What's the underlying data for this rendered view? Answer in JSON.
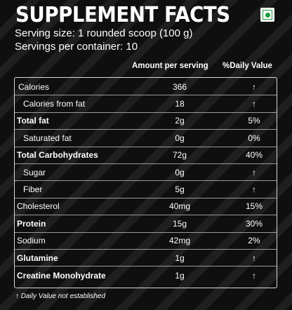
{
  "title": "SUPPLEMENT FACTS",
  "serving_size": "Serving size: 1 rounded scoop (100 g)",
  "servings_per_container": "Servings per container: 10",
  "veg_mark_icon": "veg-symbol-icon",
  "accent_green": "#1a9a3a",
  "headers": {
    "amount": "Amount per serving",
    "daily_value": "%Daily Value"
  },
  "rows": [
    {
      "label": "Calories",
      "amount": "366",
      "dv": "↑"
    },
    {
      "label": "Calories from fat",
      "amount": "18",
      "dv": "↑"
    },
    {
      "label": "Total fat",
      "amount": "2g",
      "dv": "5%"
    },
    {
      "label": "Saturated fat",
      "amount": "0g",
      "dv": "0%"
    },
    {
      "label": "Total Carbohydrates",
      "amount": "72g",
      "dv": "40%"
    },
    {
      "label": "Sugar",
      "amount": "0g",
      "dv": "↑"
    },
    {
      "label": "Fiber",
      "amount": "5g",
      "dv": "↑"
    },
    {
      "label": "Cholesterol",
      "amount": "40mg",
      "dv": "15%"
    },
    {
      "label": "Protein",
      "amount": "15g",
      "dv": "30%"
    },
    {
      "label": "Sodium",
      "amount": "42mg",
      "dv": "2%"
    },
    {
      "label": "Glutamine",
      "amount": "1g",
      "dv": "↑"
    },
    {
      "label": "Creatine Monohydrate",
      "amount": "1g",
      "dv": "↑"
    }
  ],
  "footnote": "↑ Daily Value not established"
}
